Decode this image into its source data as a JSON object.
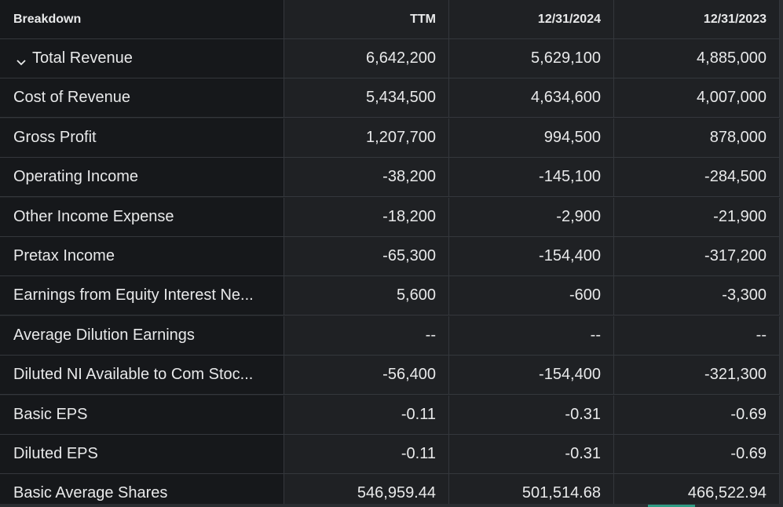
{
  "table": {
    "headers": [
      "Breakdown",
      "TTM",
      "12/31/2024",
      "12/31/2023"
    ],
    "rows": [
      {
        "label": "Total Revenue",
        "values": [
          "6,642,200",
          "5,629,100",
          "4,885,000"
        ],
        "expandable": true
      },
      {
        "label": "Cost of Revenue",
        "values": [
          "5,434,500",
          "4,634,600",
          "4,007,000"
        ]
      },
      {
        "label": "Gross Profit",
        "values": [
          "1,207,700",
          "994,500",
          "878,000"
        ]
      },
      {
        "label": "Operating Income",
        "values": [
          "-38,200",
          "-145,100",
          "-284,500"
        ]
      },
      {
        "label": "Other Income Expense",
        "values": [
          "-18,200",
          "-2,900",
          "-21,900"
        ]
      },
      {
        "label": "Pretax Income",
        "values": [
          "-65,300",
          "-154,400",
          "-317,200"
        ]
      },
      {
        "label": "Earnings from Equity Interest Ne...",
        "values": [
          "5,600",
          "-600",
          "-3,300"
        ]
      },
      {
        "label": "Average Dilution Earnings",
        "values": [
          "--",
          "--",
          "--"
        ]
      },
      {
        "label": "Diluted NI Available to Com Stoc...",
        "values": [
          "-56,400",
          "-154,400",
          "-321,300"
        ]
      },
      {
        "label": "Basic EPS",
        "values": [
          "-0.11",
          "-0.31",
          "-0.69"
        ]
      },
      {
        "label": "Diluted EPS",
        "values": [
          "-0.11",
          "-0.31",
          "-0.69"
        ]
      },
      {
        "label": "Basic Average Shares",
        "values": [
          "546,959.44",
          "501,514.68",
          "466,522.94"
        ]
      }
    ]
  },
  "icons": {
    "expand": "chevron-down-icon"
  },
  "colors": {
    "background": "#1f2124",
    "label_column": "#16181b",
    "text": "#e8e9ea",
    "border": "#34373c",
    "scroll_thumb": "#2f9c84"
  }
}
